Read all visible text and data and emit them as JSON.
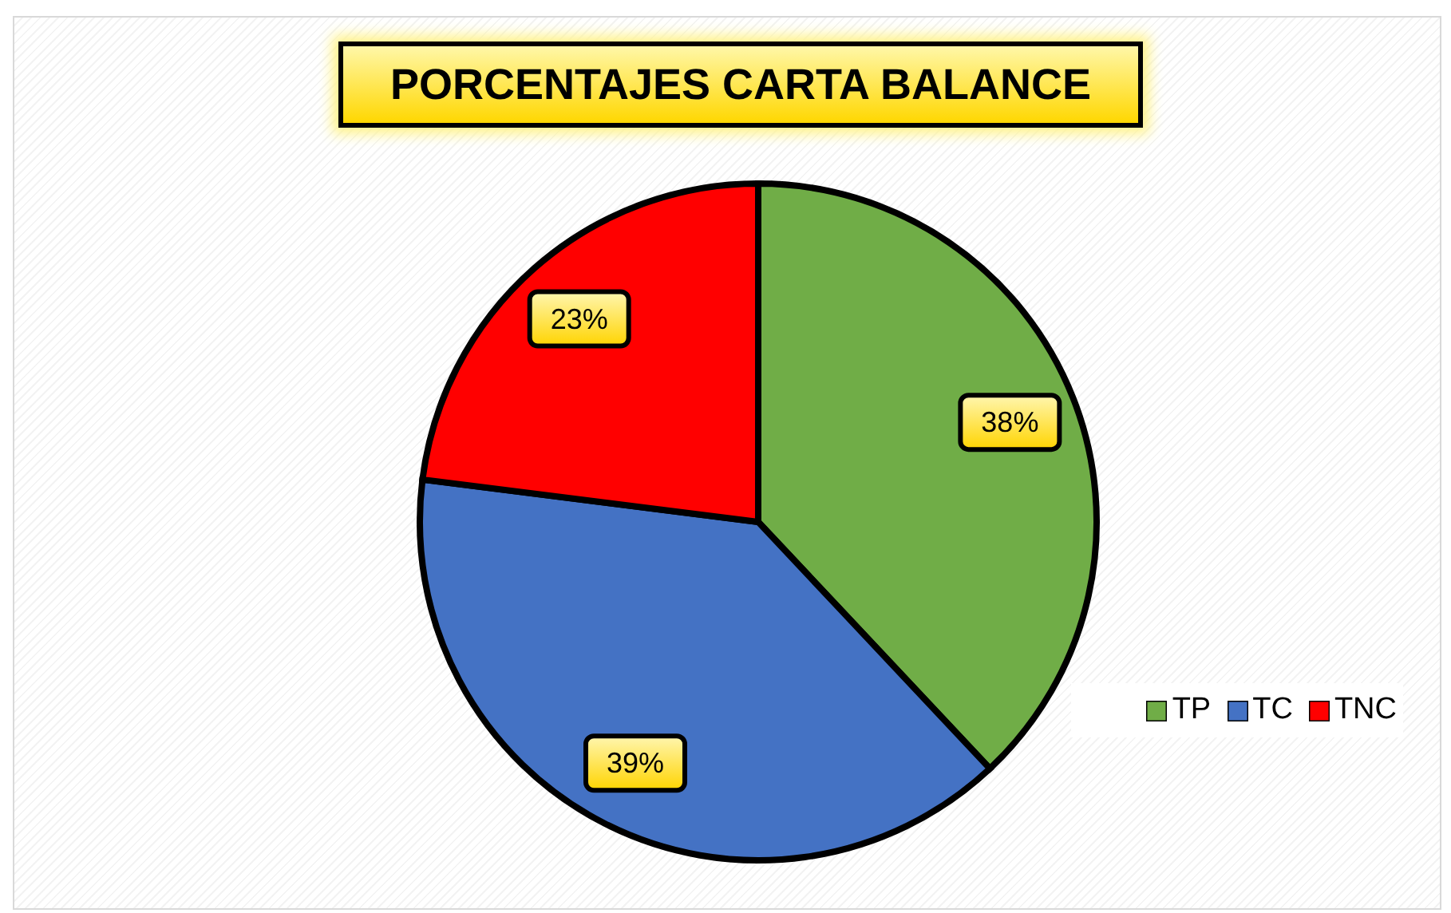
{
  "chart_data": {
    "type": "pie",
    "title": "PORCENTAJES CARTA BALANCE",
    "categories": [
      "TP",
      "TC",
      "TNC"
    ],
    "values": [
      38,
      39,
      23
    ],
    "colors": [
      "#70ad47",
      "#4472c4",
      "#ff0000"
    ],
    "value_labels": [
      "38%",
      "39%",
      "23%"
    ],
    "legend": "right"
  }
}
